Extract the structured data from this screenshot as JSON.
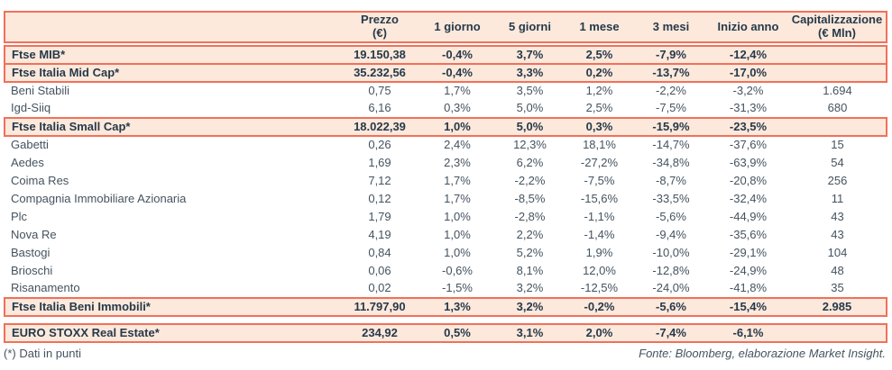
{
  "meta": {
    "colors": {
      "accent": "#f2705a",
      "band_background": "#fce9dc",
      "text_strong": "#26394a",
      "text_regular": "#45535f"
    }
  },
  "header": {
    "columns": [
      {
        "label": "",
        "sub": ""
      },
      {
        "label": "Prezzo",
        "sub": "(€)"
      },
      {
        "label": "1 giorno",
        "sub": ""
      },
      {
        "label": "5 giorni",
        "sub": ""
      },
      {
        "label": "1 mese",
        "sub": ""
      },
      {
        "label": "3 mesi",
        "sub": ""
      },
      {
        "label": "Inizio anno",
        "sub": ""
      },
      {
        "label": "Capitalizzazione",
        "sub": "(€ Mln)"
      }
    ]
  },
  "rows": [
    {
      "type": "index",
      "name": "Ftse MIB*",
      "values": [
        "19.150,38",
        "-0,4%",
        "3,7%",
        "2,5%",
        "-7,9%",
        "-12,4%",
        ""
      ]
    },
    {
      "type": "index",
      "name": "Ftse Italia Mid Cap*",
      "values": [
        "35.232,56",
        "-0,4%",
        "3,3%",
        "0,2%",
        "-13,7%",
        "-17,0%",
        ""
      ]
    },
    {
      "type": "stock",
      "name": "Beni Stabili",
      "values": [
        "0,75",
        "1,7%",
        "3,5%",
        "1,2%",
        "-2,2%",
        "-3,2%",
        "1.694"
      ]
    },
    {
      "type": "stock",
      "name": "Igd-Siiq",
      "values": [
        "6,16",
        "0,3%",
        "5,0%",
        "2,5%",
        "-7,5%",
        "-31,3%",
        "680"
      ]
    },
    {
      "type": "index",
      "name": "Ftse Italia Small Cap*",
      "values": [
        "18.022,39",
        "1,0%",
        "5,0%",
        "0,3%",
        "-15,9%",
        "-23,5%",
        ""
      ]
    },
    {
      "type": "stock",
      "name": "Gabetti",
      "values": [
        "0,26",
        "2,4%",
        "12,3%",
        "18,1%",
        "-14,7%",
        "-37,6%",
        "15"
      ]
    },
    {
      "type": "stock",
      "name": "Aedes",
      "values": [
        "1,69",
        "2,3%",
        "6,2%",
        "-27,2%",
        "-34,8%",
        "-63,9%",
        "54"
      ]
    },
    {
      "type": "stock",
      "name": "Coima Res",
      "values": [
        "7,12",
        "1,7%",
        "-2,2%",
        "-7,5%",
        "-8,7%",
        "-20,8%",
        "256"
      ]
    },
    {
      "type": "stock",
      "name": "Compagnia Immobiliare Azionaria",
      "values": [
        "0,12",
        "1,7%",
        "-8,5%",
        "-15,6%",
        "-33,5%",
        "-32,4%",
        "11"
      ]
    },
    {
      "type": "stock",
      "name": "Plc",
      "values": [
        "1,79",
        "1,0%",
        "-2,8%",
        "-1,1%",
        "-5,6%",
        "-44,9%",
        "43"
      ]
    },
    {
      "type": "stock",
      "name": "Nova Re",
      "values": [
        "4,19",
        "1,0%",
        "2,2%",
        "-1,4%",
        "-9,4%",
        "-35,6%",
        "43"
      ]
    },
    {
      "type": "stock",
      "name": "Bastogi",
      "values": [
        "0,84",
        "1,0%",
        "5,2%",
        "1,9%",
        "-10,0%",
        "-29,1%",
        "104"
      ]
    },
    {
      "type": "stock",
      "name": "Brioschi",
      "values": [
        "0,06",
        "-0,6%",
        "8,1%",
        "12,0%",
        "-12,8%",
        "-24,9%",
        "48"
      ]
    },
    {
      "type": "stock",
      "name": "Risanamento",
      "values": [
        "0,02",
        "-1,5%",
        "3,2%",
        "-12,5%",
        "-24,0%",
        "-41,8%",
        "35"
      ]
    },
    {
      "type": "index",
      "name": "Ftse Italia Beni Immobili*",
      "values": [
        "11.797,90",
        "1,3%",
        "3,2%",
        "-0,2%",
        "-5,6%",
        "-15,4%",
        "2.985"
      ]
    },
    {
      "type": "spacer"
    },
    {
      "type": "index",
      "name": "EURO STOXX Real Estate*",
      "values": [
        "234,92",
        "0,5%",
        "3,1%",
        "2,0%",
        "-7,4%",
        "-6,1%",
        ""
      ]
    }
  ],
  "footer": {
    "note": "(*) Dati in punti",
    "source": "Fonte: Bloomberg, elaborazione Market Insight."
  }
}
